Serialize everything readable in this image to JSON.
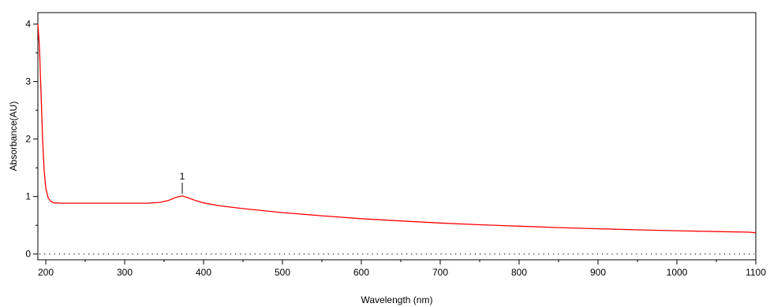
{
  "chart_data": {
    "type": "line",
    "xlabel": "Wavelength (nm)",
    "ylabel": "Absorbance(AU)",
    "xlim": [
      190,
      1100
    ],
    "ylim": [
      -0.1,
      4.2
    ],
    "x_ticks": [
      200,
      300,
      400,
      500,
      600,
      700,
      800,
      900,
      1000,
      1100
    ],
    "x_tick_labels": [
      "200",
      "300",
      "400",
      "500",
      "600",
      "700",
      "800",
      "900",
      "1000",
      "1100"
    ],
    "y_ticks": [
      0,
      1,
      2,
      3,
      4
    ],
    "y_tick_labels": [
      "0",
      "1",
      "2",
      "3",
      "4"
    ],
    "x_minor_step": 50,
    "y_minor_step": 0.5,
    "baseline": {
      "y": 0,
      "style": "dotted"
    },
    "grid": false,
    "legend": "none",
    "series": [
      {
        "color": "#ff0000",
        "points": [
          [
            190,
            4.0
          ],
          [
            192,
            3.6
          ],
          [
            194,
            2.8
          ],
          [
            196,
            2.0
          ],
          [
            198,
            1.45
          ],
          [
            200,
            1.15
          ],
          [
            203,
            0.98
          ],
          [
            206,
            0.92
          ],
          [
            210,
            0.89
          ],
          [
            220,
            0.885
          ],
          [
            250,
            0.885
          ],
          [
            300,
            0.885
          ],
          [
            330,
            0.885
          ],
          [
            345,
            0.9
          ],
          [
            355,
            0.93
          ],
          [
            365,
            0.985
          ],
          [
            373,
            1.01
          ],
          [
            380,
            0.98
          ],
          [
            390,
            0.93
          ],
          [
            400,
            0.89
          ],
          [
            420,
            0.84
          ],
          [
            450,
            0.79
          ],
          [
            500,
            0.72
          ],
          [
            550,
            0.665
          ],
          [
            600,
            0.615
          ],
          [
            650,
            0.575
          ],
          [
            700,
            0.54
          ],
          [
            750,
            0.51
          ],
          [
            800,
            0.485
          ],
          [
            850,
            0.46
          ],
          [
            900,
            0.44
          ],
          [
            950,
            0.42
          ],
          [
            1000,
            0.405
          ],
          [
            1050,
            0.39
          ],
          [
            1090,
            0.38
          ],
          [
            1100,
            0.37
          ]
        ]
      }
    ],
    "annotations": [
      {
        "label": "1",
        "x": 373,
        "y": 1.01
      }
    ]
  }
}
